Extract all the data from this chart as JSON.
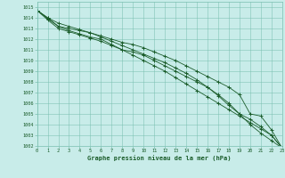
{
  "xlabel": "Graphe pression niveau de la mer (hPa)",
  "background_color": "#c8ece9",
  "grid_color": "#7abfb0",
  "line_color": "#1a5c2a",
  "marker": "+",
  "x_values": [
    0,
    1,
    2,
    3,
    4,
    5,
    6,
    7,
    8,
    9,
    10,
    11,
    12,
    13,
    14,
    15,
    16,
    17,
    18,
    19,
    20,
    21,
    22,
    23
  ],
  "lines": [
    [
      1014.7,
      1013.9,
      1013.2,
      1013.0,
      1012.8,
      1012.6,
      1012.3,
      1012.0,
      1011.7,
      1011.5,
      1011.2,
      1010.8,
      1010.4,
      1010.0,
      1009.5,
      1009.0,
      1008.5,
      1008.0,
      1007.5,
      1006.8,
      1005.0,
      1004.8,
      1003.5,
      1001.8
    ],
    [
      1014.7,
      1014.0,
      1013.2,
      1012.8,
      1012.5,
      1012.2,
      1012.0,
      1011.5,
      1011.0,
      1010.8,
      1010.5,
      1010.0,
      1009.5,
      1009.0,
      1008.5,
      1008.0,
      1007.5,
      1006.8,
      1006.0,
      1005.0,
      1004.5,
      1003.8,
      1003.0,
      1001.8
    ],
    [
      1014.7,
      1013.8,
      1013.0,
      1012.7,
      1012.4,
      1012.1,
      1011.8,
      1011.4,
      1011.0,
      1010.5,
      1010.0,
      1009.5,
      1009.0,
      1008.4,
      1007.8,
      1007.2,
      1006.6,
      1006.0,
      1005.4,
      1004.8,
      1004.2,
      1003.6,
      1003.0,
      1001.8
    ],
    [
      1014.7,
      1014.0,
      1013.5,
      1013.2,
      1012.9,
      1012.6,
      1012.2,
      1011.8,
      1011.4,
      1011.0,
      1010.6,
      1010.2,
      1009.8,
      1009.3,
      1008.8,
      1008.2,
      1007.5,
      1006.7,
      1005.8,
      1005.0,
      1004.0,
      1003.2,
      1002.5,
      1001.8
    ]
  ],
  "ylim": [
    1002,
    1015.5
  ],
  "xlim": [
    0,
    23
  ],
  "yticks": [
    1002,
    1003,
    1004,
    1005,
    1006,
    1007,
    1008,
    1009,
    1010,
    1011,
    1012,
    1013,
    1014,
    1015
  ],
  "xticks": [
    0,
    1,
    2,
    3,
    4,
    5,
    6,
    7,
    8,
    9,
    10,
    11,
    12,
    13,
    14,
    15,
    16,
    17,
    18,
    19,
    20,
    21,
    22,
    23
  ]
}
